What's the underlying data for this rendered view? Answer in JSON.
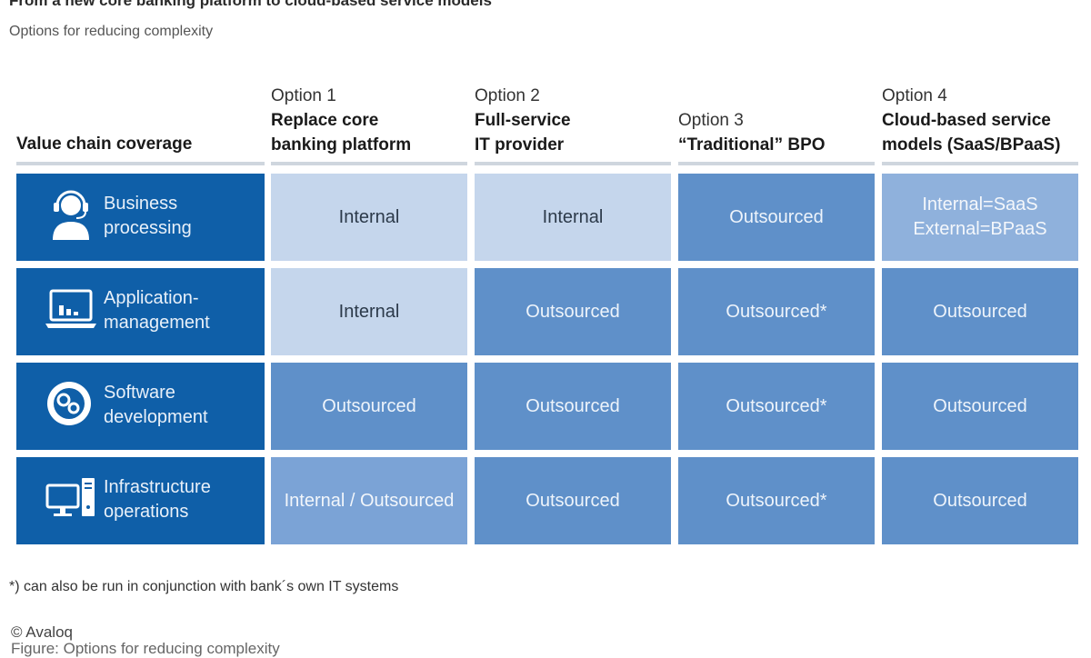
{
  "title": "From a new core banking platform to cloud-based service models",
  "subtitle": "Options for reducing complexity",
  "header": {
    "value_chain_label": "Value chain coverage",
    "options": [
      {
        "option_label": "Option 1",
        "name": "Replace core\nbanking platform"
      },
      {
        "option_label": "Option 2",
        "name": "Full-service\nIT provider"
      },
      {
        "option_label": "Option 3",
        "name": "“Traditional” BPO"
      },
      {
        "option_label": "Option 4",
        "name": "Cloud-based service\nmodels (SaaS/BPaaS)"
      }
    ]
  },
  "rows": [
    {
      "label": "Business\nprocessing",
      "icon": "headset-person-icon",
      "cells": [
        "Internal",
        "Internal",
        "Outsourced",
        "Internal=SaaS\nExternal=BPaaS"
      ]
    },
    {
      "label": "Application-\nmanagement",
      "icon": "laptop-chart-icon",
      "cells": [
        "Internal",
        "Outsourced",
        "Outsourced*",
        "Outsourced"
      ]
    },
    {
      "label": "Software\ndevelopment",
      "icon": "gears-icon",
      "cells": [
        "Outsourced",
        "Outsourced",
        "Outsourced*",
        "Outsourced"
      ]
    },
    {
      "label": "Infrastructure\noperations",
      "icon": "desktop-tower-icon",
      "cells": [
        "Internal / Outsourced",
        "Outsourced",
        "Outsourced*",
        "Outsourced"
      ]
    }
  ],
  "colors": {
    "row_header": "#0f5fa8",
    "internal": "#c5d6ec",
    "outsourced": "#5f90c9",
    "mixed": "#7ba3d6",
    "cloud": "#8fb1dc"
  },
  "footnote": "*) can also be run in conjunction with bank´s own IT systems",
  "copyright": "© Avaloq",
  "caption": "Figure: Options for reducing complexity"
}
